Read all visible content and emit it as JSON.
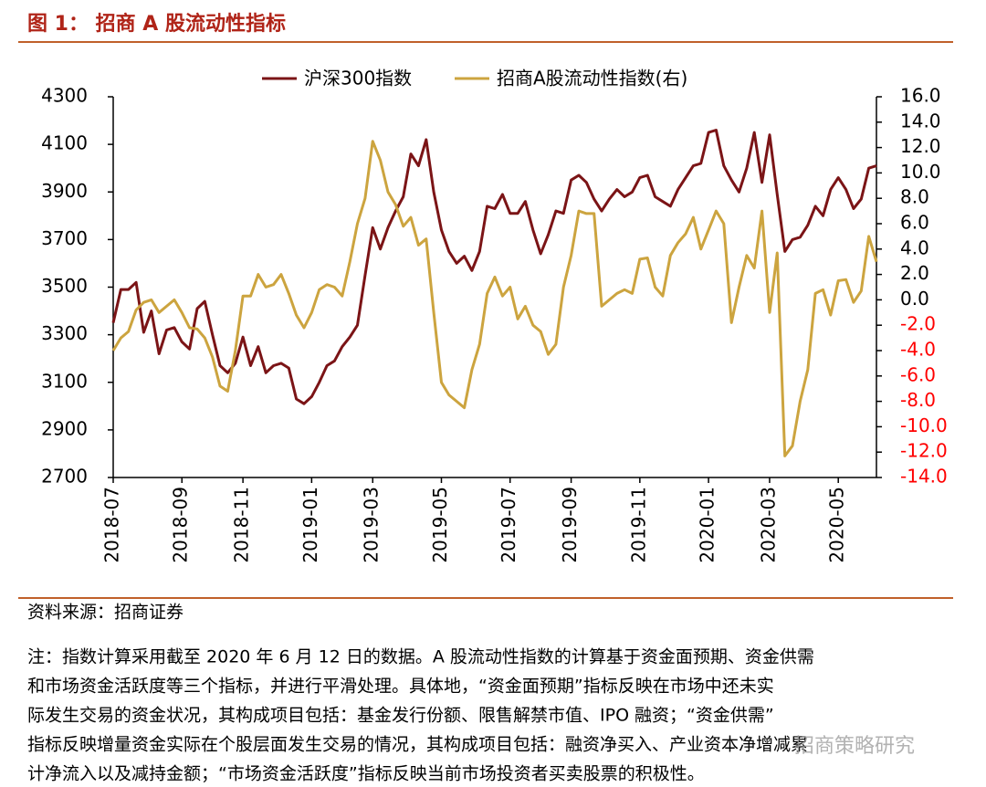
{
  "chart_data": {
    "type": "line",
    "title": "图 1：  招商 A 股流动性指标",
    "source": "资料来源：招商证券",
    "note_lines": [
      "注：指数计算采用截至 2020 年 6 月 12 日的数据。A 股流动性指数的计算基于资金面预期、资金供需",
      "和市场资金活跃度等三个指标，并进行平滑处理。具体地，“资金面预期”指标反映在市场中还未实",
      "际发生交易的资金状况，其构成项目包括：基金发行份额、限售解禁市值、IPO 融资；“资金供需”",
      "指标反映增量资金实际在个股层面发生交易的情况，其构成项目包括：融资净买入、产业资本净增减累",
      "计净流入以及减持金额；“市场资金活跃度”指标反映当前市场投资者买卖股票的积极性。"
    ],
    "watermark": "招商策略研究",
    "categories": [
      "2018-07",
      null,
      null,
      null,
      null,
      null,
      null,
      null,
      null,
      "2018-09",
      null,
      null,
      null,
      null,
      null,
      null,
      null,
      "2018-11",
      null,
      null,
      null,
      null,
      null,
      null,
      null,
      null,
      "2019-01",
      null,
      null,
      null,
      null,
      null,
      null,
      null,
      "2019-03",
      null,
      null,
      null,
      null,
      null,
      null,
      null,
      null,
      "2019-05",
      null,
      null,
      null,
      null,
      null,
      null,
      null,
      null,
      "2019-07",
      null,
      null,
      null,
      null,
      null,
      null,
      null,
      "2019-09",
      null,
      null,
      null,
      null,
      null,
      null,
      null,
      null,
      "2019-11",
      null,
      null,
      null,
      null,
      null,
      null,
      null,
      null,
      "2020-01",
      null,
      null,
      null,
      null,
      null,
      null,
      null,
      "2020-03",
      null,
      null,
      null,
      null,
      null,
      null,
      null,
      null,
      "2020-05",
      null,
      null,
      null,
      null,
      null
    ],
    "series": [
      {
        "name": "沪深300指数",
        "color": "#7b1416",
        "axis": "y",
        "values": [
          3350,
          3490,
          3490,
          3520,
          3310,
          3400,
          3220,
          3320,
          3330,
          3270,
          3240,
          3410,
          3440,
          3300,
          3170,
          3140,
          3180,
          3290,
          3170,
          3250,
          3140,
          3170,
          3180,
          3160,
          3030,
          3010,
          3040,
          3100,
          3170,
          3190,
          3250,
          3290,
          3340,
          3550,
          3750,
          3660,
          3750,
          3820,
          3880,
          4060,
          4010,
          4120,
          3900,
          3740,
          3650,
          3600,
          3630,
          3570,
          3650,
          3840,
          3830,
          3890,
          3810,
          3810,
          3860,
          3740,
          3640,
          3720,
          3820,
          3810,
          3950,
          3970,
          3940,
          3870,
          3820,
          3870,
          3910,
          3880,
          3900,
          3960,
          3970,
          3880,
          3860,
          3840,
          3910,
          3960,
          4010,
          4020,
          4150,
          4160,
          4010,
          3950,
          3900,
          4000,
          4150,
          3940,
          4140,
          3890,
          3650,
          3700,
          3710,
          3760,
          3840,
          3800,
          3910,
          3960,
          3910,
          3830,
          3870,
          4000,
          4010
        ]
      },
      {
        "name": "招商A股流动性指数(右)",
        "color": "#cca43f",
        "axis": "y2",
        "values": [
          -4.0,
          -3.0,
          -2.5,
          -0.8,
          -0.2,
          0.0,
          -1.0,
          -0.5,
          0.0,
          -1.0,
          -2.2,
          -2.3,
          -3.0,
          -4.5,
          -6.8,
          -7.2,
          -4.0,
          0.3,
          0.3,
          2.0,
          1.0,
          1.2,
          2.0,
          0.5,
          -1.2,
          -2.2,
          -1.0,
          0.8,
          1.2,
          1.0,
          0.3,
          3.0,
          6.0,
          8.0,
          12.5,
          11.0,
          8.5,
          7.5,
          5.8,
          6.5,
          4.3,
          4.8,
          -1.0,
          -6.5,
          -7.5,
          -8.0,
          -8.5,
          -5.5,
          -3.5,
          0.5,
          1.8,
          0.3,
          1.0,
          -1.5,
          -0.5,
          -2.0,
          -2.5,
          -4.3,
          -3.5,
          1.0,
          3.5,
          7.0,
          6.8,
          6.8,
          -0.5,
          0.0,
          0.5,
          0.8,
          0.5,
          3.2,
          3.3,
          1.0,
          0.3,
          3.5,
          4.5,
          5.2,
          6.5,
          4.0,
          5.5,
          7.0,
          6.0,
          -1.8,
          1.0,
          3.5,
          2.5,
          7.0,
          -1.0,
          3.7,
          -12.3,
          -11.5,
          -8.0,
          -5.5,
          0.5,
          0.8,
          -1.2,
          1.5,
          1.6,
          -0.2,
          0.7,
          5.0,
          3.0
        ]
      }
    ],
    "ylim": [
      2700,
      4300
    ],
    "yticks": [
      2700,
      2900,
      3100,
      3300,
      3500,
      3700,
      3900,
      4100,
      4300
    ],
    "y2lim": [
      -14,
      16
    ],
    "y2ticks": [
      {
        "value": -14,
        "label": "-14.0"
      },
      {
        "value": -12,
        "label": "-12.0"
      },
      {
        "value": -10,
        "label": "-10.0"
      },
      {
        "value": -8,
        "label": "-8.0"
      },
      {
        "value": -6,
        "label": "-6.0"
      },
      {
        "value": -4,
        "label": "-4.0"
      },
      {
        "value": -2,
        "label": "-2.0"
      },
      {
        "value": 0,
        "label": "0.0"
      },
      {
        "value": 2,
        "label": "2.0"
      },
      {
        "value": 4,
        "label": "4.0"
      },
      {
        "value": 6,
        "label": "6.0"
      },
      {
        "value": 8,
        "label": "8.0"
      },
      {
        "value": 10,
        "label": "10.0"
      },
      {
        "value": 12,
        "label": "12.0"
      },
      {
        "value": 14,
        "label": "14.0"
      },
      {
        "value": 16,
        "label": "16.0"
      }
    ],
    "negative_tick_color": "#ff0000",
    "legend": "top",
    "grid": false
  }
}
